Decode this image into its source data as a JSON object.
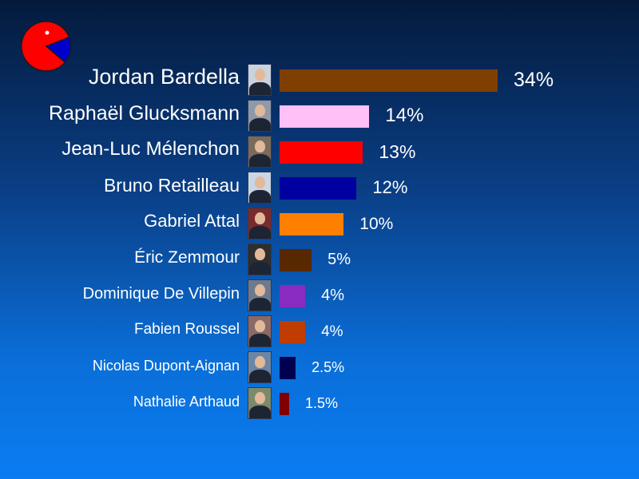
{
  "chart_data": {
    "type": "bar",
    "orientation": "horizontal",
    "unit": "%",
    "categories": [
      "Jordan Bardella",
      "Raphaël Glucksmann",
      "Jean-Luc Mélenchon",
      "Bruno Retailleau",
      "Gabriel Attal",
      "Éric Zemmour",
      "Dominique De Villepin",
      "Fabien Roussel",
      "Nicolas Dupont-Aignan",
      "Nathalie Arthaud"
    ],
    "values": [
      34,
      14,
      13,
      12,
      10,
      5,
      4,
      4,
      2.5,
      1.5
    ],
    "value_labels": [
      "34%",
      "14%",
      "13%",
      "12%",
      "10%",
      "5%",
      "4%",
      "4%",
      "2.5%",
      "1.5%"
    ],
    "colors": [
      "#7f3f00",
      "#ffc0f8",
      "#ff0000",
      "#0000a0",
      "#ff8000",
      "#582800",
      "#8a2cc0",
      "#c03c00",
      "#000050",
      "#800000"
    ],
    "photo_tones": [
      "#c9d2de",
      "#8e9aa8",
      "#7a6a5a",
      "#c8d6e6",
      "#7a2a2a",
      "#2e2e2e",
      "#6b7a8e",
      "#8a6a66",
      "#6a86a6",
      "#7a8a6a"
    ],
    "icons": [
      "portrait-photo"
    ],
    "background": "blue-gradient",
    "logo": {
      "name": "pie-chart-logo",
      "colors": [
        "#ff0000",
        "#0000cc"
      ]
    }
  }
}
